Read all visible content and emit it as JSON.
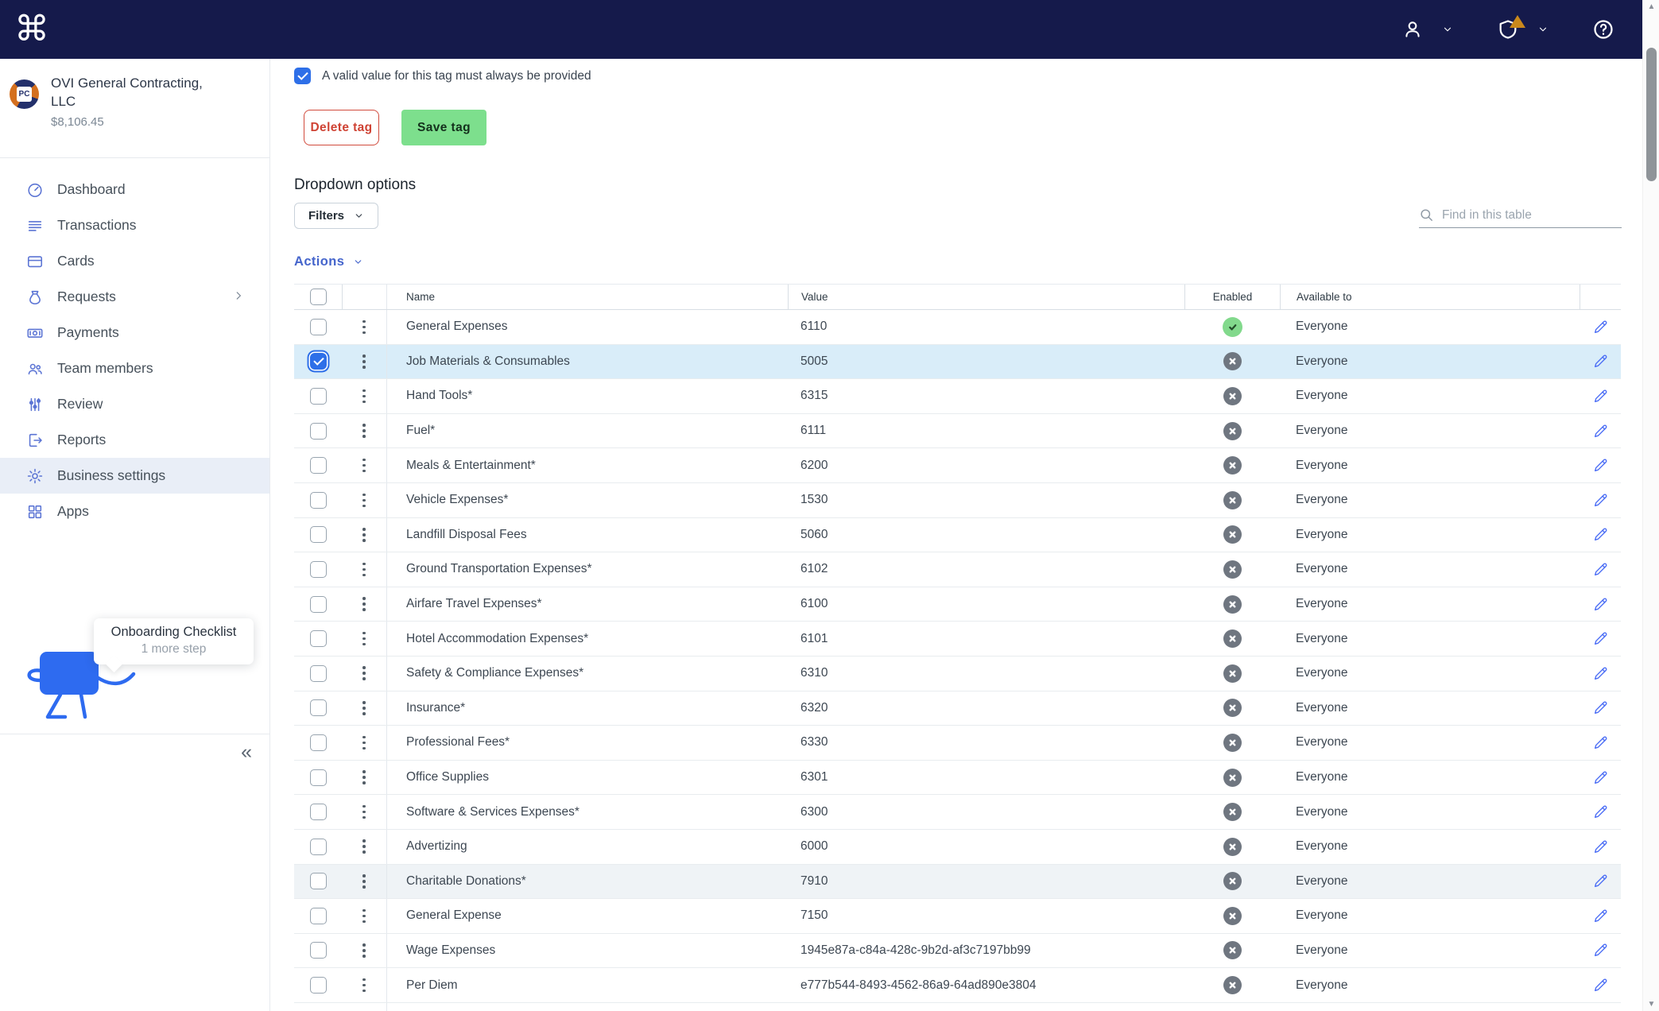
{
  "topbar": {
    "logo_glyph": "⌘"
  },
  "company": {
    "name": "OVI General Contracting, LLC",
    "balance": "$8,106.45"
  },
  "sidebar": {
    "items": [
      {
        "label": "Dashboard",
        "icon": "dashboard-icon",
        "active": false,
        "expandable": false
      },
      {
        "label": "Transactions",
        "icon": "transactions-icon",
        "active": false,
        "expandable": false
      },
      {
        "label": "Cards",
        "icon": "card-icon",
        "active": false,
        "expandable": false
      },
      {
        "label": "Requests",
        "icon": "money-bag-icon",
        "active": false,
        "expandable": true
      },
      {
        "label": "Payments",
        "icon": "banknote-icon",
        "active": false,
        "expandable": false
      },
      {
        "label": "Team members",
        "icon": "people-icon",
        "active": false,
        "expandable": false
      },
      {
        "label": "Review",
        "icon": "sliders-icon",
        "active": false,
        "expandable": false
      },
      {
        "label": "Reports",
        "icon": "export-icon",
        "active": false,
        "expandable": false
      },
      {
        "label": "Business settings",
        "icon": "gear-icon",
        "active": true,
        "expandable": false
      },
      {
        "label": "Apps",
        "icon": "apps-grid-icon",
        "active": false,
        "expandable": false
      }
    ],
    "onboarding": {
      "title": "Onboarding Checklist",
      "subtitle": "1 more step"
    },
    "collapse_glyph": "«"
  },
  "main": {
    "required_checkbox_label": "A valid value for this tag must always be provided",
    "required_checkbox_checked": true,
    "delete_button": "Delete tag",
    "save_button": "Save tag",
    "section_title": "Dropdown options",
    "filters_button": "Filters",
    "search_placeholder": "Find in this table",
    "actions_button": "Actions"
  },
  "table": {
    "columns": {
      "name": "Name",
      "value": "Value",
      "enabled": "Enabled",
      "available_to": "Available to"
    },
    "rows": [
      {
        "name": "General Expenses",
        "value": "6110",
        "enabled": true,
        "available_to": "Everyone",
        "selected": false,
        "highlight": false
      },
      {
        "name": "Job Materials & Consumables",
        "value": "5005",
        "enabled": false,
        "available_to": "Everyone",
        "selected": true,
        "highlight": false
      },
      {
        "name": "Hand Tools*",
        "value": "6315",
        "enabled": false,
        "available_to": "Everyone",
        "selected": false,
        "highlight": false
      },
      {
        "name": "Fuel*",
        "value": "6111",
        "enabled": false,
        "available_to": "Everyone",
        "selected": false,
        "highlight": false
      },
      {
        "name": "Meals & Entertainment*",
        "value": "6200",
        "enabled": false,
        "available_to": "Everyone",
        "selected": false,
        "highlight": false
      },
      {
        "name": "Vehicle Expenses*",
        "value": "1530",
        "enabled": false,
        "available_to": "Everyone",
        "selected": false,
        "highlight": false
      },
      {
        "name": "Landfill Disposal Fees",
        "value": "5060",
        "enabled": false,
        "available_to": "Everyone",
        "selected": false,
        "highlight": false
      },
      {
        "name": "Ground Transportation Expenses*",
        "value": "6102",
        "enabled": false,
        "available_to": "Everyone",
        "selected": false,
        "highlight": false
      },
      {
        "name": "Airfare Travel Expenses*",
        "value": "6100",
        "enabled": false,
        "available_to": "Everyone",
        "selected": false,
        "highlight": false
      },
      {
        "name": "Hotel Accommodation Expenses*",
        "value": "6101",
        "enabled": false,
        "available_to": "Everyone",
        "selected": false,
        "highlight": false
      },
      {
        "name": "Safety & Compliance Expenses*",
        "value": "6310",
        "enabled": false,
        "available_to": "Everyone",
        "selected": false,
        "highlight": false
      },
      {
        "name": "Insurance*",
        "value": "6320",
        "enabled": false,
        "available_to": "Everyone",
        "selected": false,
        "highlight": false
      },
      {
        "name": "Professional Fees*",
        "value": "6330",
        "enabled": false,
        "available_to": "Everyone",
        "selected": false,
        "highlight": false
      },
      {
        "name": "Office Supplies",
        "value": "6301",
        "enabled": false,
        "available_to": "Everyone",
        "selected": false,
        "highlight": false
      },
      {
        "name": "Software & Services Expenses*",
        "value": "6300",
        "enabled": false,
        "available_to": "Everyone",
        "selected": false,
        "highlight": false
      },
      {
        "name": "Advertizing",
        "value": "6000",
        "enabled": false,
        "available_to": "Everyone",
        "selected": false,
        "highlight": false
      },
      {
        "name": "Charitable Donations*",
        "value": "7910",
        "enabled": false,
        "available_to": "Everyone",
        "selected": false,
        "highlight": true
      },
      {
        "name": "General Expense",
        "value": "7150",
        "enabled": false,
        "available_to": "Everyone",
        "selected": false,
        "highlight": false
      },
      {
        "name": "Wage Expenses",
        "value": "1945e87a-c84a-428c-9b2d-af3c7197bb99",
        "enabled": false,
        "available_to": "Everyone",
        "selected": false,
        "highlight": false
      },
      {
        "name": "Per Diem",
        "value": "e777b544-8493-4562-86a9-64ad890e3804",
        "enabled": false,
        "available_to": "Everyone",
        "selected": false,
        "highlight": false
      }
    ]
  },
  "colors": {
    "topbar_navy": "#151a4b",
    "accent_blue": "#2e6fe8",
    "link_blue": "#4565cc",
    "sidebar_icon_blue": "#5b74d4",
    "save_green": "#7ddf8d",
    "delete_red": "#cf4334",
    "enabled_green": "#82d98c",
    "disabled_gray": "#6f7680",
    "selected_row_blue": "#d9edf9",
    "active_nav_bg": "#e9eef7"
  }
}
